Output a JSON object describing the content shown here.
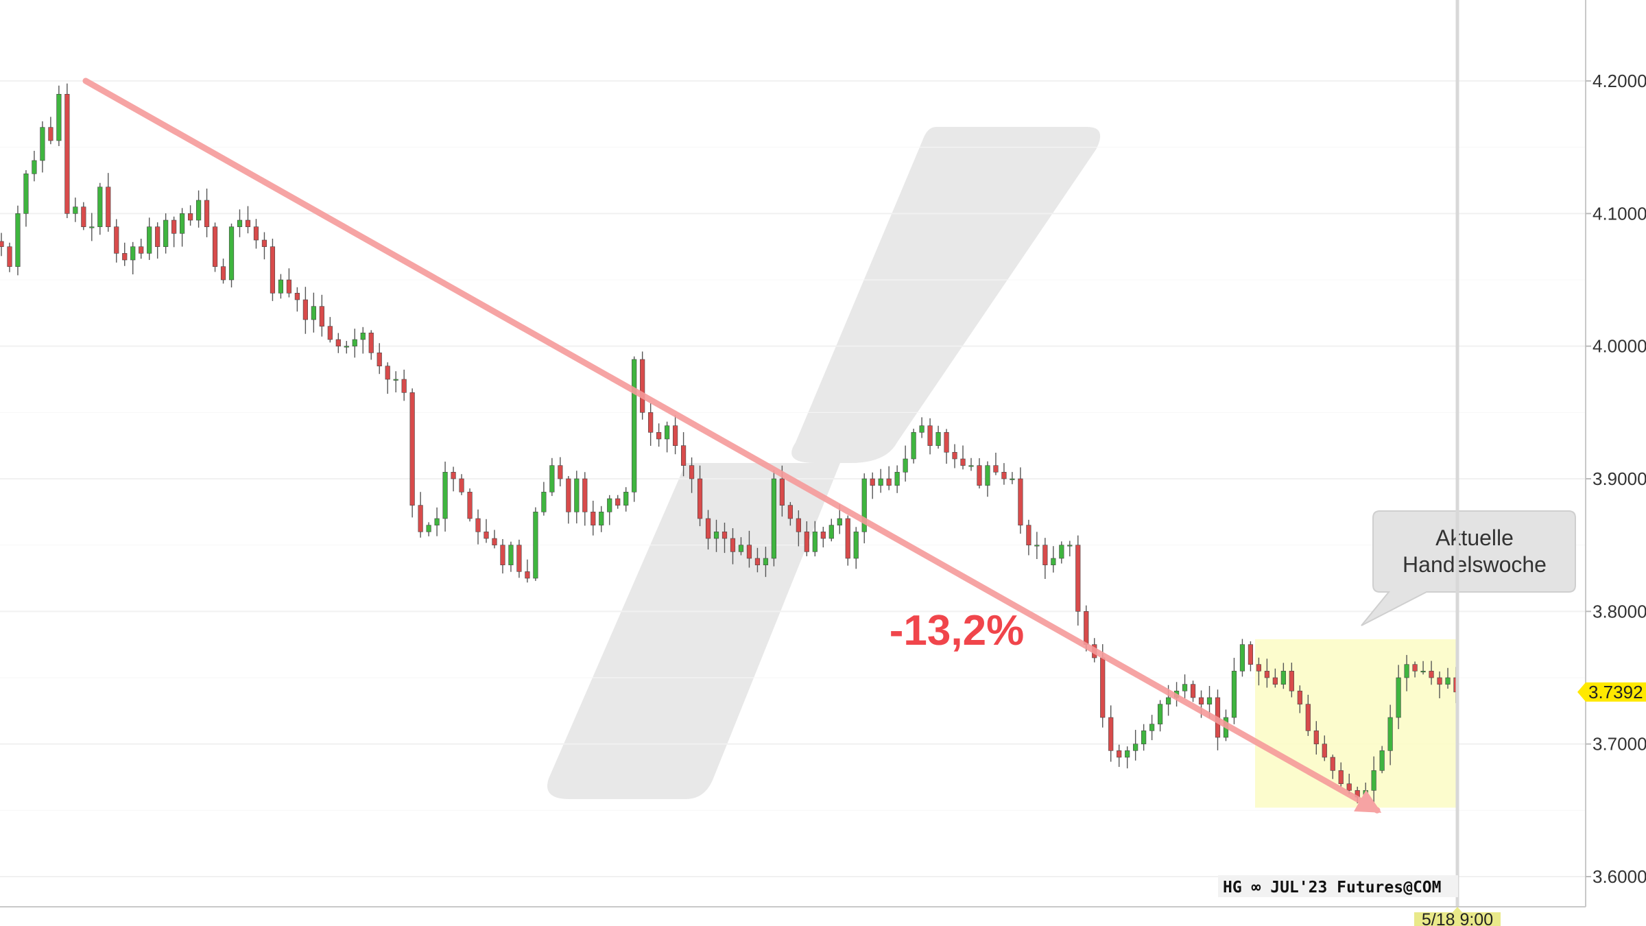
{
  "chart_data": {
    "type": "candlestick",
    "symbol_label": "HG ∞ JUL'23 Futures@COM",
    "last_price_label": "3.7392",
    "last_price": 3.7392,
    "time_marker_label": "5/18 9:00",
    "change_annotation": "-13,2%",
    "callout": {
      "line1": "Aktuelle",
      "line2": "Handelswoche"
    },
    "y_axis": {
      "range": [
        3.57,
        4.26
      ],
      "ticks": [
        {
          "value": 4.2,
          "label": "4.2000"
        },
        {
          "value": 4.1,
          "label": "4.1000"
        },
        {
          "value": 4.0,
          "label": "4.0000"
        },
        {
          "value": 3.9,
          "label": "3.9000"
        },
        {
          "value": 3.8,
          "label": "3.8000"
        },
        {
          "value": 3.7,
          "label": "3.7000"
        },
        {
          "value": 3.6,
          "label": "3.6000"
        }
      ]
    },
    "grid": true,
    "trend_line": {
      "start_price": 4.2,
      "end_price": 3.65
    },
    "highlight_box": {
      "price_low": 3.652,
      "price_high": 3.779
    },
    "close_path": [
      4.075,
      4.06,
      4.1,
      4.13,
      4.14,
      4.165,
      4.155,
      4.19,
      4.1,
      4.105,
      4.09,
      4.09,
      4.12,
      4.09,
      4.07,
      4.065,
      4.075,
      4.07,
      4.09,
      4.075,
      4.095,
      4.085,
      4.1,
      4.095,
      4.11,
      4.09,
      4.06,
      4.05,
      4.09,
      4.095,
      4.09,
      4.08,
      4.075,
      4.04,
      4.05,
      4.04,
      4.035,
      4.02,
      4.03,
      4.015,
      4.005,
      4.0,
      4.0,
      4.005,
      4.01,
      3.995,
      3.985,
      3.975,
      3.975,
      3.965,
      3.88,
      3.86,
      3.865,
      3.87,
      3.905,
      3.9,
      3.89,
      3.87,
      3.86,
      3.855,
      3.85,
      3.835,
      3.85,
      3.83,
      3.825,
      3.875,
      3.89,
      3.91,
      3.9,
      3.875,
      3.9,
      3.875,
      3.865,
      3.875,
      3.885,
      3.88,
      3.89,
      3.99,
      3.95,
      3.935,
      3.93,
      3.94,
      3.925,
      3.91,
      3.9,
      3.87,
      3.855,
      3.86,
      3.855,
      3.845,
      3.85,
      3.84,
      3.835,
      3.84,
      3.9,
      3.88,
      3.87,
      3.86,
      3.845,
      3.86,
      3.855,
      3.865,
      3.87,
      3.84,
      3.86,
      3.9,
      3.895,
      3.9,
      3.895,
      3.905,
      3.915,
      3.935,
      3.94,
      3.925,
      3.935,
      3.92,
      3.915,
      3.91,
      3.91,
      3.895,
      3.91,
      3.905,
      3.9,
      3.9,
      3.865,
      3.85,
      3.85,
      3.835,
      3.84,
      3.85,
      3.85,
      3.8,
      3.775,
      3.765,
      3.72,
      3.695,
      3.69,
      3.695,
      3.7,
      3.71,
      3.715,
      3.73,
      3.735,
      3.74,
      3.745,
      3.735,
      3.73,
      3.735,
      3.705,
      3.72,
      3.755,
      3.775,
      3.76,
      3.755,
      3.75,
      3.745,
      3.755,
      3.74,
      3.73,
      3.71,
      3.7,
      3.69,
      3.68,
      3.67,
      3.665,
      3.66,
      3.665,
      3.68,
      3.695,
      3.72,
      3.75,
      3.76,
      3.755,
      3.755,
      3.75,
      3.745,
      3.75,
      3.7392
    ]
  }
}
